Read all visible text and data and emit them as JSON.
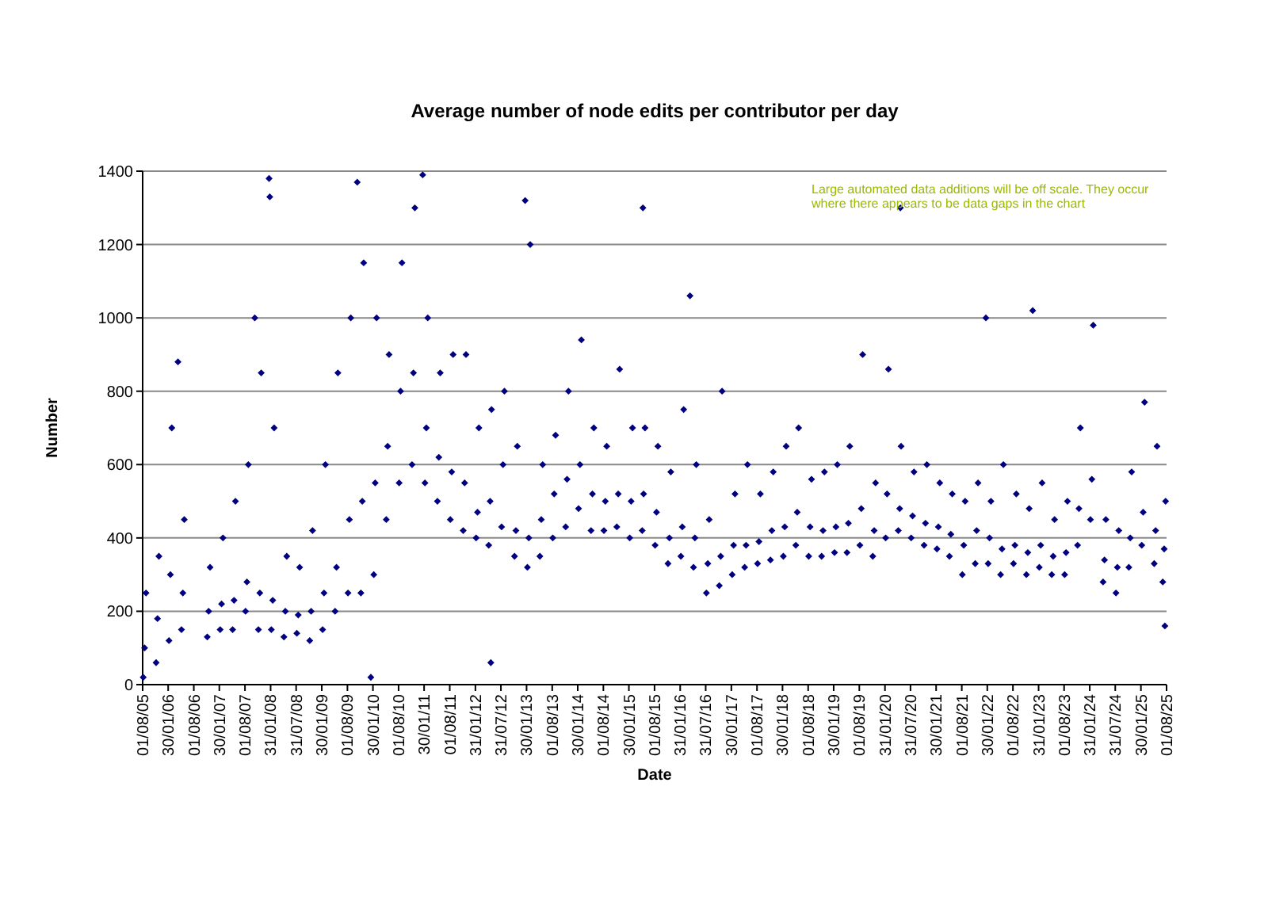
{
  "chart_data": {
    "type": "scatter",
    "title": "Average number of node edits per contributor per day",
    "xlabel": "Date",
    "ylabel": "Number",
    "annotations": [
      "Large automated data additions will be off scale.  They occur where there appears to be data gaps in the chart"
    ],
    "ylim": [
      0,
      1400
    ],
    "yticks": [
      0,
      200,
      400,
      600,
      800,
      1000,
      1200,
      1400
    ],
    "xlim": [
      "2005-08-01",
      "2025-08-01"
    ],
    "xticks": [
      {
        "value": "2005-08-01",
        "label": "01/08/05"
      },
      {
        "value": "2006-01-30",
        "label": "30/01/06"
      },
      {
        "value": "2006-08-01",
        "label": "01/08/06"
      },
      {
        "value": "2007-01-30",
        "label": "30/01/07"
      },
      {
        "value": "2007-08-01",
        "label": "01/08/07"
      },
      {
        "value": "2008-01-31",
        "label": "31/01/08"
      },
      {
        "value": "2008-07-31",
        "label": "31/07/08"
      },
      {
        "value": "2009-01-30",
        "label": "30/01/09"
      },
      {
        "value": "2009-08-01",
        "label": "01/08/09"
      },
      {
        "value": "2010-01-30",
        "label": "30/01/10"
      },
      {
        "value": "2010-08-01",
        "label": "01/08/10"
      },
      {
        "value": "2011-01-30",
        "label": "30/01/11"
      },
      {
        "value": "2011-08-01",
        "label": "01/08/11"
      },
      {
        "value": "2012-01-31",
        "label": "31/01/12"
      },
      {
        "value": "2012-07-31",
        "label": "31/07/12"
      },
      {
        "value": "2013-01-30",
        "label": "30/01/13"
      },
      {
        "value": "2013-08-01",
        "label": "01/08/13"
      },
      {
        "value": "2014-01-30",
        "label": "30/01/14"
      },
      {
        "value": "2014-08-01",
        "label": "01/08/14"
      },
      {
        "value": "2015-01-30",
        "label": "30/01/15"
      },
      {
        "value": "2015-08-01",
        "label": "01/08/15"
      },
      {
        "value": "2016-01-31",
        "label": "31/01/16"
      },
      {
        "value": "2016-07-31",
        "label": "31/07/16"
      },
      {
        "value": "2017-01-30",
        "label": "30/01/17"
      },
      {
        "value": "2017-08-01",
        "label": "01/08/17"
      },
      {
        "value": "2018-01-30",
        "label": "30/01/18"
      },
      {
        "value": "2018-08-01",
        "label": "01/08/18"
      },
      {
        "value": "2019-01-30",
        "label": "30/01/19"
      },
      {
        "value": "2019-08-01",
        "label": "01/08/19"
      },
      {
        "value": "2020-01-31",
        "label": "31/01/20"
      },
      {
        "value": "2020-07-31",
        "label": "31/07/20"
      },
      {
        "value": "2021-01-30",
        "label": "30/01/21"
      },
      {
        "value": "2021-08-01",
        "label": "01/08/21"
      },
      {
        "value": "2022-01-30",
        "label": "30/01/22"
      },
      {
        "value": "2022-08-01",
        "label": "01/08/22"
      },
      {
        "value": "2023-01-31",
        "label": "31/01/23"
      },
      {
        "value": "2023-08-01",
        "label": "01/08/23"
      },
      {
        "value": "2024-01-31",
        "label": "31/01/24"
      },
      {
        "value": "2024-07-31",
        "label": "31/07/24"
      },
      {
        "value": "2025-01-30",
        "label": "30/01/25"
      },
      {
        "value": "2025-08-01",
        "label": "01/08/25"
      }
    ],
    "grid": "y",
    "marker": "diamond",
    "series": [
      {
        "color": "#000080",
        "x": [
          "2005-08-05",
          "2005-08-15",
          "2005-08-25",
          "2005-11-05",
          "2005-11-15",
          "2005-11-25",
          "2006-02-05",
          "2006-02-15",
          "2006-02-25",
          "2006-05-05",
          "2006-05-15",
          "2006-05-25",
          "2006-11-05",
          "2006-11-15",
          "2006-11-25",
          "2007-02-05",
          "2007-02-15",
          "2007-02-25",
          "2007-05-05",
          "2007-05-15",
          "2007-05-25",
          "2007-08-05",
          "2007-08-15",
          "2007-08-25",
          "2007-11-05",
          "2007-11-15",
          "2007-11-25",
          "2008-02-05",
          "2008-02-15",
          "2008-02-25",
          "2008-05-05",
          "2008-05-15",
          "2008-05-25",
          "2008-08-05",
          "2008-08-15",
          "2008-08-25",
          "2008-11-05",
          "2008-11-15",
          "2008-11-25",
          "2009-02-05",
          "2009-02-15",
          "2009-02-25",
          "2009-05-05",
          "2009-05-15",
          "2009-05-25",
          "2009-08-05",
          "2009-08-15",
          "2009-08-25",
          "2009-11-05",
          "2009-11-15",
          "2009-11-25",
          "2010-02-05",
          "2010-02-15",
          "2010-02-25",
          "2010-05-05",
          "2010-05-15",
          "2010-05-25",
          "2010-08-05",
          "2010-08-15",
          "2010-08-25",
          "2010-11-05",
          "2010-11-15",
          "2010-11-25",
          "2011-02-05",
          "2011-02-15",
          "2011-02-25",
          "2011-05-05",
          "2011-05-15",
          "2011-05-25",
          "2011-08-05",
          "2011-08-15",
          "2011-08-25",
          "2011-11-05",
          "2011-11-15",
          "2011-11-25",
          "2012-02-05",
          "2012-02-15",
          "2012-02-25",
          "2012-05-05",
          "2012-05-15",
          "2012-05-25",
          "2012-08-05",
          "2012-08-15",
          "2012-08-25",
          "2012-11-05",
          "2012-11-15",
          "2012-11-25",
          "2013-02-05",
          "2013-02-15",
          "2013-02-25",
          "2013-05-05",
          "2013-05-15",
          "2013-05-25",
          "2013-08-05",
          "2013-08-15",
          "2013-08-25",
          "2013-11-05",
          "2013-11-15",
          "2013-11-25",
          "2014-02-05",
          "2014-02-15",
          "2014-02-25",
          "2014-05-05",
          "2014-05-15",
          "2014-05-25",
          "2014-08-05",
          "2014-08-15",
          "2014-08-25",
          "2014-11-05",
          "2014-11-15",
          "2014-11-25",
          "2015-02-05",
          "2015-02-15",
          "2015-02-25",
          "2015-05-05",
          "2015-05-15",
          "2015-05-25",
          "2015-08-05",
          "2015-08-15",
          "2015-08-25",
          "2015-11-05",
          "2015-11-15",
          "2015-11-25",
          "2016-02-05",
          "2016-02-15",
          "2016-02-25",
          "2016-05-05",
          "2016-05-15",
          "2016-05-25",
          "2016-08-05",
          "2016-08-15",
          "2016-08-25",
          "2016-11-05",
          "2016-11-15",
          "2016-11-25",
          "2017-02-05",
          "2017-02-15",
          "2017-02-25",
          "2017-05-05",
          "2017-05-15",
          "2017-05-25",
          "2017-08-05",
          "2017-08-15",
          "2017-08-25",
          "2017-11-05",
          "2017-11-15",
          "2017-11-25",
          "2018-02-05",
          "2018-02-15",
          "2018-02-25",
          "2018-05-05",
          "2018-05-15",
          "2018-05-25",
          "2018-08-05",
          "2018-08-15",
          "2018-08-25",
          "2018-11-05",
          "2018-11-15",
          "2018-11-25",
          "2019-02-05",
          "2019-02-15",
          "2019-02-25",
          "2019-05-05",
          "2019-05-15",
          "2019-05-25",
          "2019-08-05",
          "2019-08-15",
          "2019-08-25",
          "2019-11-05",
          "2019-11-15",
          "2019-11-25",
          "2020-02-05",
          "2020-02-15",
          "2020-02-25",
          "2020-05-05",
          "2020-05-15",
          "2020-05-25",
          "2020-08-05",
          "2020-08-15",
          "2020-08-25",
          "2020-11-05",
          "2020-11-15",
          "2020-11-25",
          "2021-02-05",
          "2021-02-15",
          "2021-02-25",
          "2021-05-05",
          "2021-05-15",
          "2021-05-25",
          "2021-08-05",
          "2021-08-15",
          "2021-08-25",
          "2021-11-05",
          "2021-11-15",
          "2021-11-25",
          "2022-02-05",
          "2022-02-15",
          "2022-02-25",
          "2022-05-05",
          "2022-05-15",
          "2022-05-25",
          "2022-08-05",
          "2022-08-15",
          "2022-08-25",
          "2022-11-05",
          "2022-11-15",
          "2022-11-25",
          "2023-02-05",
          "2023-02-15",
          "2023-02-25",
          "2023-05-05",
          "2023-05-15",
          "2023-05-25",
          "2023-08-05",
          "2023-08-15",
          "2023-08-25",
          "2023-11-05",
          "2023-11-15",
          "2023-11-25",
          "2024-02-05",
          "2024-02-15",
          "2024-02-25",
          "2024-05-05",
          "2024-05-15",
          "2024-05-25",
          "2024-08-05",
          "2024-08-15",
          "2024-08-25",
          "2024-11-05",
          "2024-11-15",
          "2024-11-25",
          "2025-02-05",
          "2025-02-15",
          "2025-02-25",
          "2025-05-05",
          "2025-05-15",
          "2025-05-25",
          "2025-07-05",
          "2025-07-15",
          "2025-07-25",
          "2006-04-10",
          "2007-10-10",
          "2008-01-20",
          "2008-01-25",
          "2009-10-10",
          "2010-01-15",
          "2011-01-20",
          "2012-05-20",
          "2013-01-20",
          "2015-05-10",
          "2016-04-10",
          "2020-05-20",
          "2022-01-20",
          "2022-12-20",
          "2025-07-20"
        ],
        "values": [
          20,
          100,
          250,
          60,
          180,
          350,
          120,
          300,
          700,
          150,
          250,
          450,
          130,
          200,
          320,
          150,
          220,
          400,
          150,
          230,
          500,
          200,
          280,
          600,
          150,
          250,
          850,
          150,
          230,
          700,
          130,
          200,
          350,
          140,
          190,
          320,
          120,
          200,
          420,
          150,
          250,
          600,
          200,
          320,
          850,
          250,
          450,
          1000,
          250,
          500,
          1150,
          300,
          550,
          1000,
          450,
          650,
          900,
          550,
          800,
          1150,
          600,
          850,
          1300,
          550,
          700,
          1000,
          500,
          620,
          850,
          450,
          580,
          900,
          420,
          550,
          900,
          400,
          470,
          700,
          380,
          500,
          750,
          430,
          600,
          800,
          350,
          420,
          650,
          320,
          400,
          1200,
          350,
          450,
          600,
          400,
          520,
          680,
          430,
          560,
          800,
          480,
          600,
          940,
          420,
          520,
          700,
          420,
          500,
          650,
          430,
          520,
          860,
          400,
          500,
          700,
          420,
          520,
          700,
          380,
          470,
          650,
          330,
          400,
          580,
          350,
          430,
          750,
          320,
          400,
          600,
          250,
          330,
          450,
          270,
          350,
          800,
          300,
          380,
          520,
          320,
          380,
          600,
          330,
          390,
          520,
          340,
          420,
          580,
          350,
          430,
          650,
          380,
          470,
          700,
          350,
          430,
          560,
          350,
          420,
          580,
          360,
          430,
          600,
          360,
          440,
          650,
          380,
          480,
          900,
          350,
          420,
          550,
          400,
          520,
          860,
          420,
          480,
          650,
          400,
          460,
          580,
          380,
          440,
          600,
          370,
          430,
          550,
          350,
          410,
          520,
          300,
          380,
          500,
          330,
          420,
          550,
          330,
          400,
          500,
          300,
          370,
          600,
          330,
          380,
          520,
          300,
          360,
          480,
          320,
          380,
          550,
          300,
          350,
          450,
          300,
          360,
          500,
          380,
          480,
          700,
          450,
          560,
          980,
          280,
          340,
          450,
          250,
          320,
          420,
          320,
          400,
          580,
          380,
          470,
          770,
          330,
          420,
          650,
          280,
          370,
          500,
          880,
          1000,
          1380,
          1330,
          1370,
          20,
          1390,
          60,
          1320,
          1300,
          1060,
          1300,
          1000,
          1020,
          160
        ]
      }
    ]
  }
}
